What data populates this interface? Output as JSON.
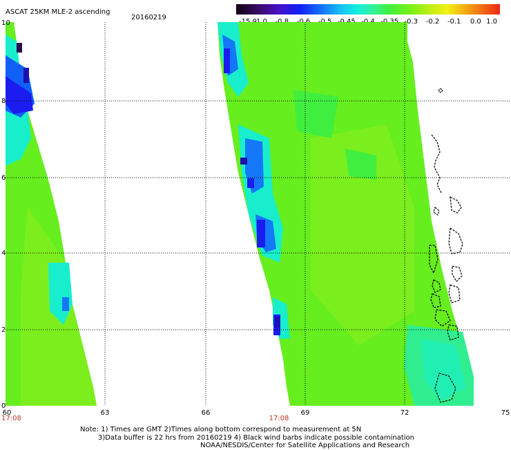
{
  "header": {
    "title": "ASCAT 25KM MLE-2 ascending",
    "date": "20160219"
  },
  "colorbar": {
    "labels": [
      "-15.0",
      "-1.0",
      "-0.8",
      "-0.6",
      "-0.5",
      "-0.45",
      "-0.4",
      "-0.35",
      "-0.3",
      "-0.2",
      "-0.1",
      "0.0",
      "1.0"
    ],
    "colors": [
      "#2a0a24",
      "#5a1aa6",
      "#1a14f0",
      "#1060f8",
      "#18b4f0",
      "#14ecec",
      "#38f4a0",
      "#3cf03c",
      "#70f018",
      "#b4ee18",
      "#f0f014",
      "#f49c14",
      "#ee3c14"
    ]
  },
  "left_panel": {
    "y_labels": [
      "10",
      "8",
      "6",
      "4",
      "2",
      "0"
    ],
    "x_labels": [
      "60",
      "63"
    ],
    "time_label": "17:08"
  },
  "right_panel": {
    "x_labels": [
      "66",
      "69",
      "72",
      "75"
    ],
    "time_label": "17:08"
  },
  "notes": {
    "line1": "Note: 1) Times are GMT 2)Times along bottom correspond to measurement at 5N",
    "line2": "3)Data buffer is 22 hrs from 20160219 4) Black wind barbs indicate possible contamination",
    "line3": "NOAA/NESDIS/Center for Satellite Applications and Research"
  },
  "palette": {
    "green": "#66ee1e",
    "yellow_green": "#9aee1a",
    "cyan": "#18eecc",
    "blue": "#1a1cf0",
    "dark_blue": "#1e10b0"
  }
}
